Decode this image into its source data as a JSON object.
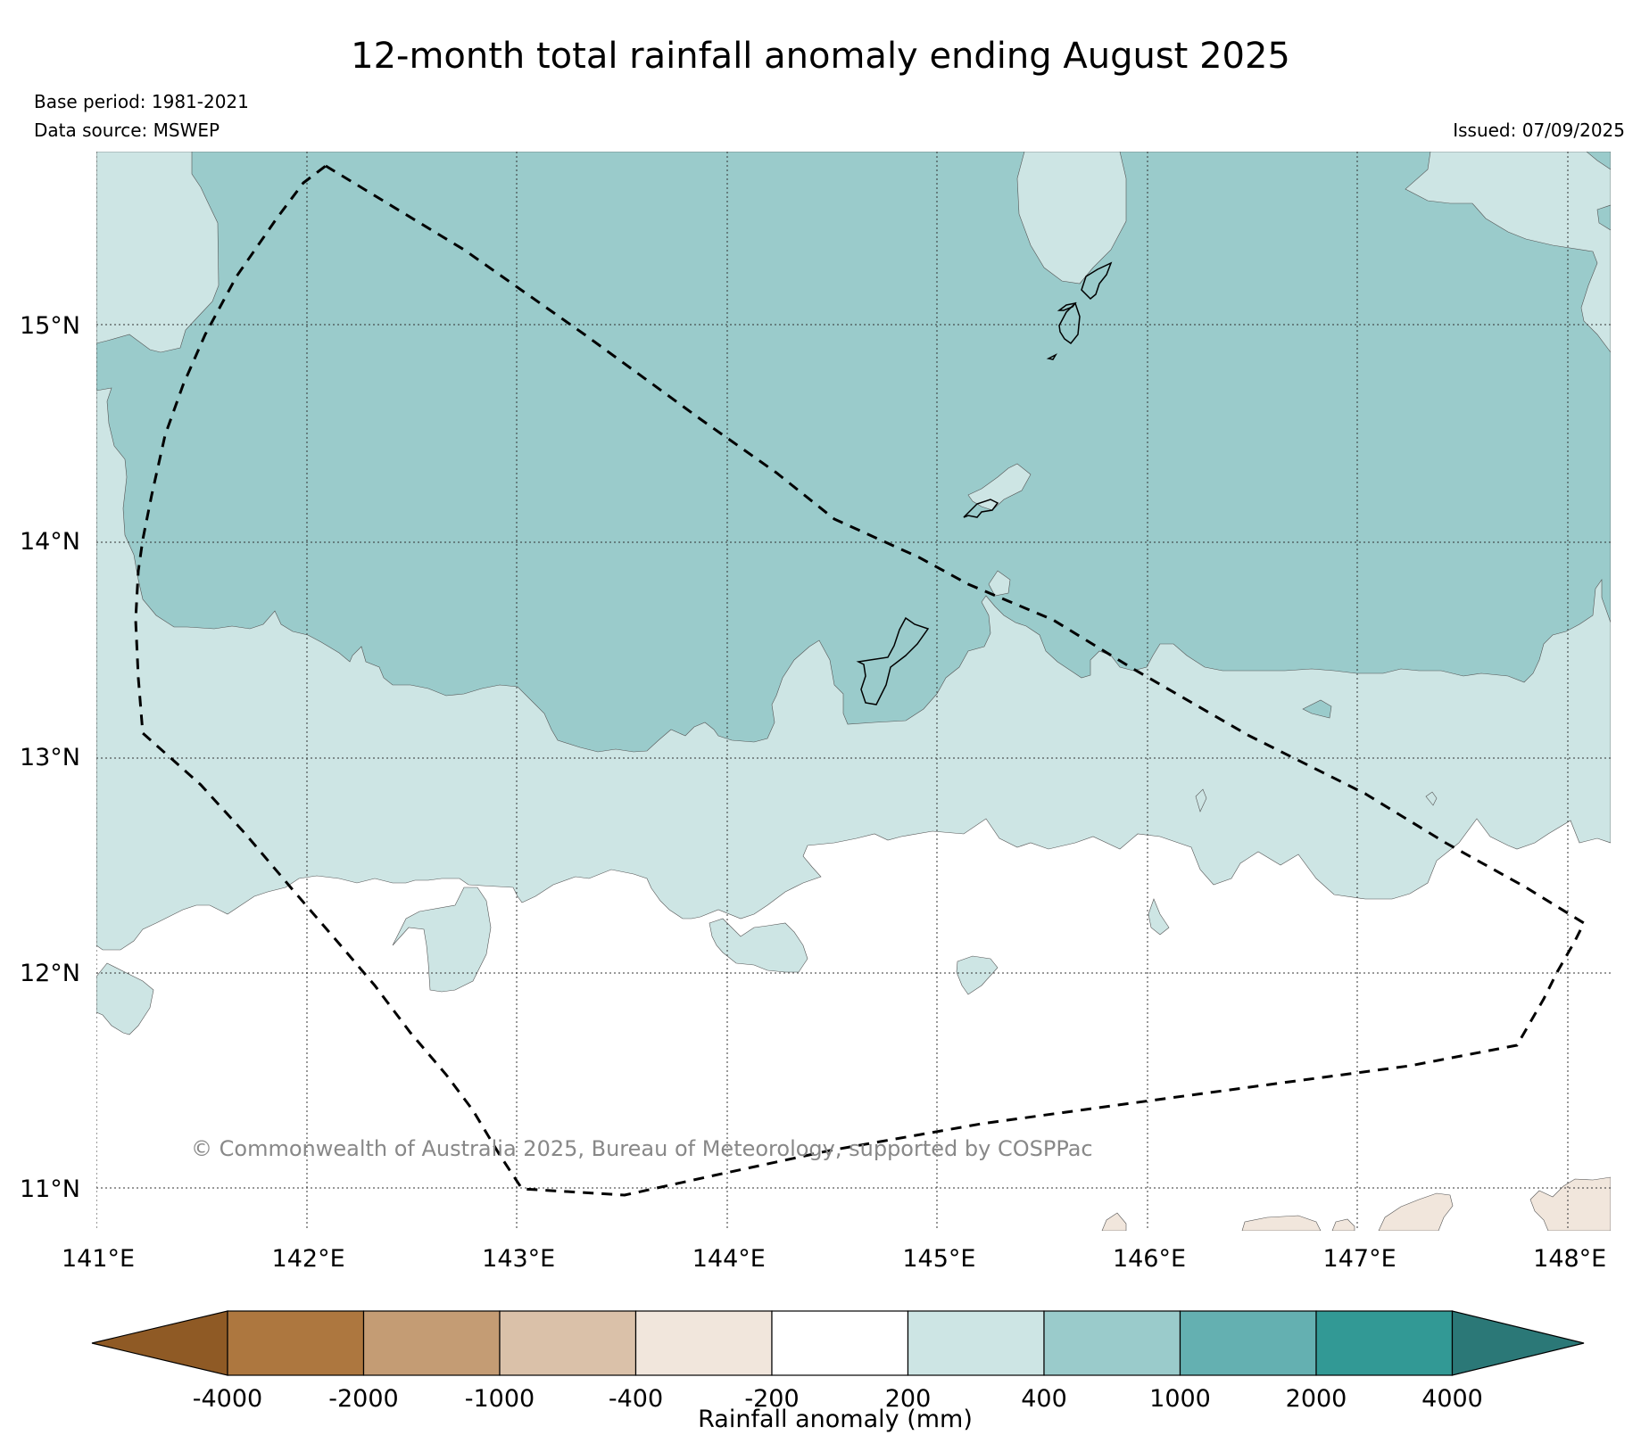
{
  "header": {
    "title": "12-month total rainfall anomaly ending August 2025",
    "base_period": "Base period: 1981-2021",
    "data_source": "Data source: MSWEP",
    "issued": "Issued: 07/09/2025"
  },
  "map": {
    "lon_range": [
      141,
      148.2
    ],
    "lat_range": [
      10.8,
      15.8
    ],
    "lat_ticks": [
      {
        "value": 15,
        "label": "15°N"
      },
      {
        "value": 14,
        "label": "14°N"
      },
      {
        "value": 13,
        "label": "13°N"
      },
      {
        "value": 12,
        "label": "12°N"
      },
      {
        "value": 11,
        "label": "11°N"
      }
    ],
    "lon_ticks": [
      {
        "value": 141,
        "label": "141°E"
      },
      {
        "value": 142,
        "label": "142°E"
      },
      {
        "value": 143,
        "label": "143°E"
      },
      {
        "value": 144,
        "label": "144°E"
      },
      {
        "value": 145,
        "label": "145°E"
      },
      {
        "value": 146,
        "label": "146°E"
      },
      {
        "value": 147,
        "label": "147°E"
      },
      {
        "value": 148,
        "label": "148°E"
      }
    ],
    "grid": true,
    "credit": "© Commonwealth of Australia 2025, Bureau of Meteorology, supported by COSPPac",
    "eez_boundary_style": "dashed",
    "colors": {
      "band_200_400": "#cde5e4",
      "band_400_1000": "#9acbcb",
      "band_neg400_neg200": "#f1e6dc",
      "coastline": "#000000"
    }
  },
  "legend": {
    "title": "Rainfall anomaly (mm)",
    "ticks": [
      "-4000",
      "-2000",
      "-1000",
      "-400",
      "-200",
      "200",
      "400",
      "1000",
      "2000",
      "4000"
    ],
    "bands": [
      {
        "range": "< -4000",
        "color": "#8f5a25"
      },
      {
        "range": "-4000 to -2000",
        "color": "#ad773f"
      },
      {
        "range": "-2000 to -1000",
        "color": "#c49c74"
      },
      {
        "range": "-1000 to -400",
        "color": "#dac1a9"
      },
      {
        "range": "-400 to -200",
        "color": "#f1e6dc"
      },
      {
        "range": "-200 to 200",
        "color": "#ffffff"
      },
      {
        "range": "200 to 400",
        "color": "#cde5e4"
      },
      {
        "range": "400 to 1000",
        "color": "#9acbcb"
      },
      {
        "range": "1000 to 2000",
        "color": "#64b0b1"
      },
      {
        "range": "2000 to 4000",
        "color": "#329995"
      },
      {
        "range": "> 4000",
        "color": "#2b7877"
      }
    ]
  }
}
